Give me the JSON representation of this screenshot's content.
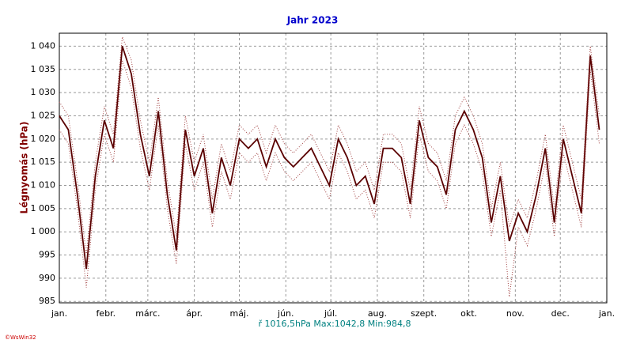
{
  "chart_data": {
    "type": "line",
    "title": "Jahr 2023",
    "ylabel": "Légnyomás (hPa)",
    "footer": "ř 1016,5hPa  Max:1042,8  Min:984,8",
    "credit": "©WsWin32",
    "x": [
      0,
      6,
      12,
      18,
      24,
      30,
      36,
      42,
      48,
      54,
      60,
      66,
      72,
      78,
      84,
      90,
      96,
      102,
      108,
      114,
      120,
      126,
      132,
      138,
      144,
      150,
      156,
      162,
      168,
      174,
      180,
      186,
      192,
      198,
      204,
      210,
      216,
      222,
      228,
      234,
      240,
      246,
      252,
      258,
      264,
      270,
      276,
      282,
      288,
      294,
      300,
      306,
      312,
      318,
      324,
      330,
      336,
      342,
      348,
      354,
      360
    ],
    "series": [
      {
        "color": "#5a0000",
        "dash": false,
        "values": [
          1025,
          1022,
          1008,
          992,
          1012,
          1024,
          1018,
          1040,
          1034,
          1021,
          1012,
          1026,
          1008,
          996,
          1022,
          1012,
          1018,
          1004,
          1016,
          1010,
          1020,
          1018,
          1020,
          1014,
          1020,
          1016,
          1014,
          1016,
          1018,
          1014,
          1010,
          1020,
          1016,
          1010,
          1012,
          1006,
          1018,
          1018,
          1016,
          1006,
          1024,
          1016,
          1014,
          1008,
          1022,
          1026,
          1022,
          1016,
          1002,
          1012,
          998,
          1004,
          1000,
          1008,
          1018,
          1002,
          1020,
          1012,
          1004,
          1038,
          1022
        ]
      },
      {
        "color": "#a04040",
        "dash": true,
        "values": [
          1028,
          1025,
          1011,
          995,
          1015,
          1027,
          1021,
          1042,
          1037,
          1024,
          1015,
          1029,
          1011,
          999,
          1025,
          1015,
          1021,
          1007,
          1019,
          1013,
          1023,
          1021,
          1023,
          1017,
          1023,
          1019,
          1017,
          1019,
          1021,
          1017,
          1013,
          1023,
          1019,
          1013,
          1015,
          1009,
          1021,
          1021,
          1019,
          1009,
          1027,
          1019,
          1017,
          1011,
          1025,
          1029,
          1025,
          1019,
          1005,
          1015,
          1001,
          1007,
          1003,
          1011,
          1021,
          1005,
          1023,
          1015,
          1007,
          1040,
          1025
        ]
      },
      {
        "color": "#a04040",
        "dash": true,
        "values": [
          1022,
          1019,
          1005,
          988,
          1009,
          1021,
          1015,
          1037,
          1031,
          1018,
          1009,
          1023,
          1005,
          993,
          1019,
          1009,
          1015,
          1001,
          1013,
          1007,
          1017,
          1015,
          1017,
          1011,
          1017,
          1013,
          1011,
          1013,
          1015,
          1011,
          1007,
          1017,
          1013,
          1007,
          1009,
          1003,
          1015,
          1015,
          1013,
          1003,
          1021,
          1013,
          1011,
          1005,
          1019,
          1023,
          1019,
          1013,
          999,
          1009,
          986,
          1001,
          997,
          1005,
          1015,
          999,
          1017,
          1009,
          1001,
          1035,
          1019
        ]
      }
    ],
    "xlim": [
      0,
      365
    ],
    "xticks": [
      {
        "value": 0,
        "label": "jan."
      },
      {
        "value": 31,
        "label": "febr."
      },
      {
        "value": 59,
        "label": "márc."
      },
      {
        "value": 90,
        "label": "ápr."
      },
      {
        "value": 120,
        "label": "máj."
      },
      {
        "value": 151,
        "label": "jún."
      },
      {
        "value": 181,
        "label": "júl."
      },
      {
        "value": 212,
        "label": "aug."
      },
      {
        "value": 243,
        "label": "szept."
      },
      {
        "value": 273,
        "label": "okt."
      },
      {
        "value": 304,
        "label": "nov."
      },
      {
        "value": 334,
        "label": "dec."
      },
      {
        "value": 365,
        "label": "jan."
      }
    ],
    "ylim": [
      984.7,
      1042.8
    ],
    "yticks": [
      985,
      990,
      995,
      {
        "value": 1000,
        "label": "1 000"
      },
      {
        "value": 1005,
        "label": "1 005"
      },
      {
        "value": 1010,
        "label": "1 010"
      },
      {
        "value": 1015,
        "label": "1 015"
      },
      {
        "value": 1020,
        "label": "1 020"
      },
      {
        "value": 1025,
        "label": "1 025"
      },
      {
        "value": 1030,
        "label": "1 030"
      },
      {
        "value": 1035,
        "label": "1 035"
      },
      {
        "value": 1040,
        "label": "1 040"
      }
    ],
    "grid": true
  }
}
